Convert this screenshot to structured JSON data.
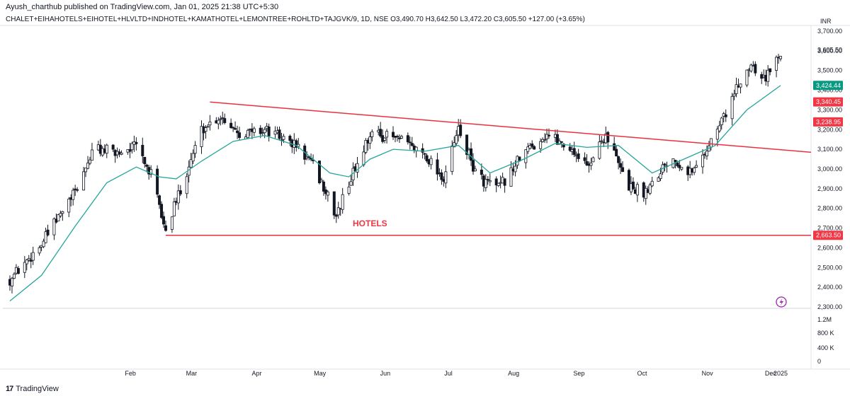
{
  "header": {
    "published": "Ayush_charthub published on TradingView.com, Jan 01, 2025 21:38 UTC+5:30",
    "legend": "CHALET+EIHAHOTELS+EIHOTEL+HLVLTD+INDHOTEL+KAMATHOTEL+LEMONTREE+ROHLTD+TAJGVK/9, 1D, NSE  O3,490.70  H3,642.50  L3,472.20  C3,605.50  +127.00 (+3.65%)"
  },
  "footer": {
    "brand": "TradingView",
    "brand_logo": "17"
  },
  "colors": {
    "up": "#ffffff",
    "down": "#131722",
    "wick": "#131722",
    "ma": "#26a69a",
    "trendline": "#e8323f",
    "label_red": "#f23645",
    "label_green": "#089981"
  },
  "chart_data": {
    "type": "candlestick",
    "symbol": "CHALET+EIHAHOTELS+EIHOTEL+HLVLTD+INDHOTEL+KAMATHOTEL+LEMONTREE+ROHLTD+TAJGVK/9",
    "interval": "1D",
    "exchange": "NSE",
    "currency": "INR",
    "last_bar": {
      "open": 3490.7,
      "high": 3642.5,
      "low": 3472.2,
      "close": 3605.5,
      "change": "+127.00 (+3.65%)"
    },
    "y_range": [
      2300,
      3700
    ],
    "y_ticks": [
      "3,700.00",
      "3,600.00",
      "3,500.00",
      "3,400.00",
      "3,300.00",
      "3,200.00",
      "3,100.00",
      "3,000.00",
      "2,900.00",
      "2,800.00",
      "2,700.00",
      "2,600.00",
      "2,500.00",
      "2,400.00",
      "2,300.00"
    ],
    "y_tick_values": [
      3700,
      3600,
      3500,
      3400,
      3300,
      3200,
      3100,
      3000,
      2900,
      2800,
      2700,
      2600,
      2500,
      2400,
      2300
    ],
    "volume_ticks": [
      "1.2M",
      "800 K",
      "400 K",
      "0"
    ],
    "x_ticks": [
      "Feb",
      "Mar",
      "Apr",
      "May",
      "Jun",
      "Jul",
      "Aug",
      "Sep",
      "Oct",
      "Nov",
      "Dec",
      "2025"
    ],
    "x_tick_dates": [
      "2024-02-01",
      "2024-03-01",
      "2024-04-01",
      "2024-05-01",
      "2024-06-01",
      "2024-07-01",
      "2024-08-01",
      "2024-09-01",
      "2024-10-01",
      "2024-11-01",
      "2024-12-01",
      "2025-01-01"
    ],
    "date_range": [
      "2024-01-01",
      "2025-01-01"
    ],
    "price_labels": [
      {
        "text": "3,605.50",
        "value": 3605.5,
        "style": "plain"
      },
      {
        "text": "3,424.44",
        "value": 3424.44,
        "style": "green"
      },
      {
        "text": "3,340.45",
        "value": 3340.45,
        "style": "red"
      },
      {
        "text": "3,238.95",
        "value": 3238.95,
        "style": "red"
      },
      {
        "text": "2,663.50",
        "value": 2663.5,
        "style": "red"
      }
    ],
    "annotations": [
      {
        "text": "HOTELS",
        "date": "2024-06-20",
        "price": 2710
      }
    ],
    "trendline": {
      "start": {
        "date": "2024-04-05",
        "price": 3340
      },
      "end": {
        "date": "2025-01-10",
        "price": 3085
      }
    },
    "support_line": {
      "start_date": "2024-03-15",
      "price": 2663.5
    },
    "moving_average": [
      {
        "date": "2024-01-01",
        "value": 2330
      },
      {
        "date": "2024-01-16",
        "value": 2460
      },
      {
        "date": "2024-02-01",
        "value": 2710
      },
      {
        "date": "2024-02-16",
        "value": 2930
      },
      {
        "date": "2024-03-01",
        "value": 3010
      },
      {
        "date": "2024-03-12",
        "value": 2960
      },
      {
        "date": "2024-03-20",
        "value": 2950
      },
      {
        "date": "2024-04-01",
        "value": 3040
      },
      {
        "date": "2024-04-16",
        "value": 3140
      },
      {
        "date": "2024-05-01",
        "value": 3170
      },
      {
        "date": "2024-05-16",
        "value": 3120
      },
      {
        "date": "2024-06-01",
        "value": 2980
      },
      {
        "date": "2024-06-10",
        "value": 2960
      },
      {
        "date": "2024-06-20",
        "value": 3050
      },
      {
        "date": "2024-07-01",
        "value": 3100
      },
      {
        "date": "2024-07-16",
        "value": 3090
      },
      {
        "date": "2024-08-01",
        "value": 3120
      },
      {
        "date": "2024-08-16",
        "value": 2980
      },
      {
        "date": "2024-09-01",
        "value": 3050
      },
      {
        "date": "2024-09-16",
        "value": 3130
      },
      {
        "date": "2024-10-01",
        "value": 3110
      },
      {
        "date": "2024-10-16",
        "value": 3120
      },
      {
        "date": "2024-11-01",
        "value": 2980
      },
      {
        "date": "2024-11-16",
        "value": 3050
      },
      {
        "date": "2024-12-01",
        "value": 3120
      },
      {
        "date": "2024-12-16",
        "value": 3300
      },
      {
        "date": "2025-01-01",
        "value": 3424
      }
    ],
    "candle_path": [
      {
        "date": "2024-01-01",
        "value": 2440
      },
      {
        "date": "2024-01-16",
        "value": 2620
      },
      {
        "date": "2024-02-01",
        "value": 2880
      },
      {
        "date": "2024-02-10",
        "value": 3110
      },
      {
        "date": "2024-02-20",
        "value": 3080
      },
      {
        "date": "2024-03-01",
        "value": 3120
      },
      {
        "date": "2024-03-08",
        "value": 2970
      },
      {
        "date": "2024-03-15",
        "value": 2680
      },
      {
        "date": "2024-03-22",
        "value": 2900
      },
      {
        "date": "2024-04-01",
        "value": 3200
      },
      {
        "date": "2024-04-10",
        "value": 3270
      },
      {
        "date": "2024-04-20",
        "value": 3180
      },
      {
        "date": "2024-05-01",
        "value": 3200
      },
      {
        "date": "2024-05-16",
        "value": 3120
      },
      {
        "date": "2024-05-25",
        "value": 3000
      },
      {
        "date": "2024-06-04",
        "value": 2760
      },
      {
        "date": "2024-06-10",
        "value": 2930
      },
      {
        "date": "2024-06-20",
        "value": 3180
      },
      {
        "date": "2024-07-01",
        "value": 3160
      },
      {
        "date": "2024-07-16",
        "value": 3080
      },
      {
        "date": "2024-07-25",
        "value": 2950
      },
      {
        "date": "2024-08-01",
        "value": 3200
      },
      {
        "date": "2024-08-10",
        "value": 2960
      },
      {
        "date": "2024-08-20",
        "value": 2900
      },
      {
        "date": "2024-09-01",
        "value": 3080
      },
      {
        "date": "2024-09-12",
        "value": 3180
      },
      {
        "date": "2024-09-25",
        "value": 3090
      },
      {
        "date": "2024-10-01",
        "value": 3010
      },
      {
        "date": "2024-10-10",
        "value": 3180
      },
      {
        "date": "2024-10-20",
        "value": 2920
      },
      {
        "date": "2024-10-28",
        "value": 2880
      },
      {
        "date": "2024-11-10",
        "value": 3070
      },
      {
        "date": "2024-11-20",
        "value": 2980
      },
      {
        "date": "2024-12-01",
        "value": 3180
      },
      {
        "date": "2024-12-10",
        "value": 3380
      },
      {
        "date": "2024-12-18",
        "value": 3540
      },
      {
        "date": "2024-12-25",
        "value": 3460
      },
      {
        "date": "2025-01-01",
        "value": 3600
      }
    ]
  }
}
